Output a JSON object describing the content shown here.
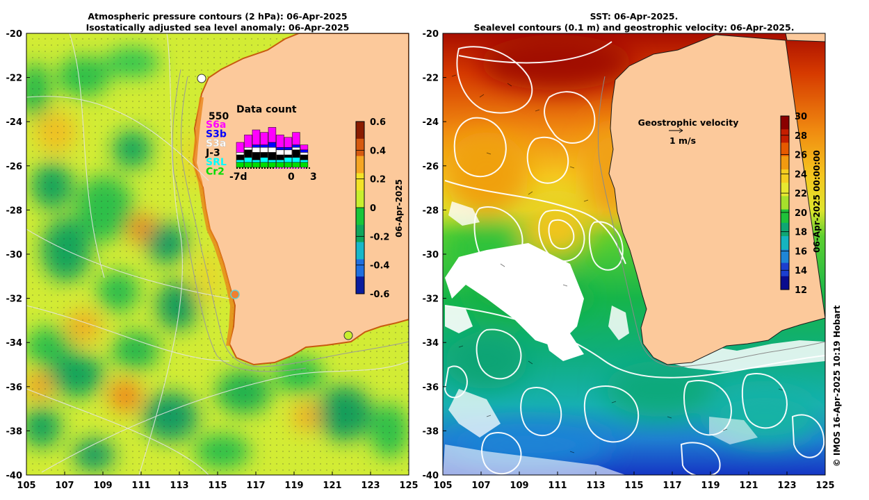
{
  "left_panel": {
    "title_line1": "Atmospheric pressure contours (2 hPa): 06-Apr-2025",
    "title_line2": "Isostatically adjusted sea level anomaly: 06-Apr-2025",
    "colorbar": {
      "label": "06-Apr-2025",
      "ticks": [
        "0.6",
        "0.4",
        "0.2",
        "0",
        "-0.2",
        "-0.4",
        "-0.6"
      ],
      "colors": [
        "#8a1c00",
        "#d65a10",
        "#f5a623",
        "#f3e327",
        "#c8ef2e",
        "#17c53a",
        "#0fa65c",
        "#17b8c9",
        "#1f6fe0",
        "#0a1c9e"
      ]
    },
    "data_count": {
      "title": "Data count",
      "max_label": "550",
      "satellites": [
        {
          "name": "S6a",
          "color": "#ff00ff"
        },
        {
          "name": "S3b",
          "color": "#0000ff"
        },
        {
          "name": "S3a",
          "color": "#ffffff"
        },
        {
          "name": "J-3",
          "color": "#000000"
        },
        {
          "name": "SRL",
          "color": "#00ffff"
        },
        {
          "name": "Cr2",
          "color": "#00dd00"
        }
      ],
      "x_labels": [
        "-7d",
        "0",
        "3"
      ],
      "bars": [
        [
          4,
          0,
          1,
          2,
          1,
          2
        ],
        [
          5,
          0,
          1,
          3,
          2,
          2
        ],
        [
          6,
          1,
          2,
          3,
          1,
          2
        ],
        [
          5,
          1,
          2,
          2,
          2,
          2
        ],
        [
          6,
          2,
          2,
          3,
          1,
          2
        ],
        [
          5,
          1,
          2,
          2,
          1,
          2
        ],
        [
          4,
          1,
          2,
          1,
          2,
          2
        ],
        [
          5,
          1,
          1,
          3,
          2,
          2
        ],
        [
          2,
          1,
          1,
          2,
          1,
          2
        ]
      ]
    }
  },
  "right_panel": {
    "title_line1": "SST: 06-Apr-2025.",
    "title_line2": "Sealevel contours (0.1 m) and geostrophic velocity: 06-Apr-2025.",
    "legend_title": "Geostrophic velocity",
    "legend_scale": "1 m/s",
    "colorbar": {
      "label": "06-Apr-2025 00:00:00",
      "ticks": [
        "30",
        "28",
        "26",
        "24",
        "22",
        "20",
        "18",
        "16",
        "14",
        "12"
      ],
      "colors": [
        "#8a0000",
        "#c41e00",
        "#e65a00",
        "#f29a10",
        "#f5cd20",
        "#e7e830",
        "#a6e02c",
        "#1fc23a",
        "#0fa673",
        "#15b4bf",
        "#1f86d6",
        "#1c3fd0",
        "#0a0c8e"
      ]
    }
  },
  "axes": {
    "x_ticks": [
      "105",
      "107",
      "109",
      "111",
      "113",
      "115",
      "117",
      "119",
      "121",
      "123",
      "125"
    ],
    "y_ticks": [
      "-20",
      "-22",
      "-24",
      "-26",
      "-28",
      "-30",
      "-32",
      "-34",
      "-36",
      "-38",
      "-40"
    ]
  },
  "colors": {
    "land": "#fcc99b"
  },
  "credit": "© IMOS 16-Apr-2025 10:19 Hobart"
}
